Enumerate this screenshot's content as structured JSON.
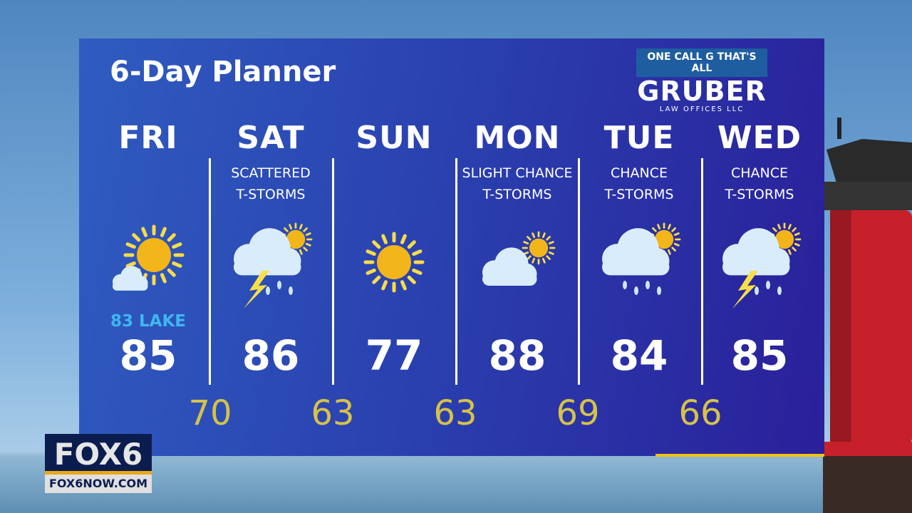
{
  "title": "6-Day Planner",
  "sponsor": {
    "tagline": "ONE CALL G THAT'S ALL",
    "name": "GRUBER",
    "sub": "LAW OFFICES LLC"
  },
  "days": [
    {
      "day": "FRI",
      "condition": "",
      "icon": "sun-with-cloud-icon",
      "note": "83 LAKE",
      "high": "85"
    },
    {
      "day": "SAT",
      "condition": "SCATTERED\nT-STORMS",
      "icon": "thunderstorm-icon",
      "note": "",
      "high": "86"
    },
    {
      "day": "SUN",
      "condition": "",
      "icon": "sun-icon",
      "note": "",
      "high": "77"
    },
    {
      "day": "MON",
      "condition": "SLIGHT CHANCE\nT-STORMS",
      "icon": "partly-cloudy-icon",
      "note": "",
      "high": "88"
    },
    {
      "day": "TUE",
      "condition": "CHANCE\nT-STORMS",
      "icon": "rain-icon",
      "note": "",
      "high": "84"
    },
    {
      "day": "WED",
      "condition": "CHANCE\nT-STORMS",
      "icon": "thunderstorm-icon",
      "note": "",
      "high": "85"
    }
  ],
  "lows": [
    "70",
    "63",
    "63",
    "69",
    "66"
  ],
  "station": {
    "logo": "FOX6",
    "url": "FOX6NOW.COM"
  },
  "colors": {
    "low": "#d6c249",
    "lake": "#3fb6f0",
    "accent": "#f1c40f"
  }
}
